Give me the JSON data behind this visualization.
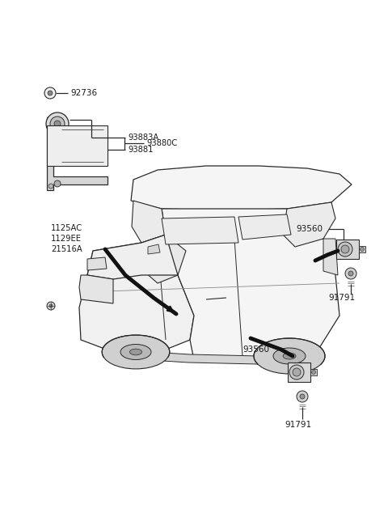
{
  "bg_color": "#ffffff",
  "fig_width": 4.8,
  "fig_height": 6.55,
  "line_color": "#2a2a2a",
  "text_color": "#1a1a1a",
  "part_fill": "#e8e8e8",
  "part_edge": "#2a2a2a",
  "label_92736": "92736",
  "label_93883A": "93883A",
  "label_93881": "93881",
  "label_93880C": "93880C",
  "label_1125AC": "1125AC",
  "label_1129EE": "1129EE",
  "label_21516A": "21516A",
  "label_93560": "93560",
  "label_91791": "91791"
}
